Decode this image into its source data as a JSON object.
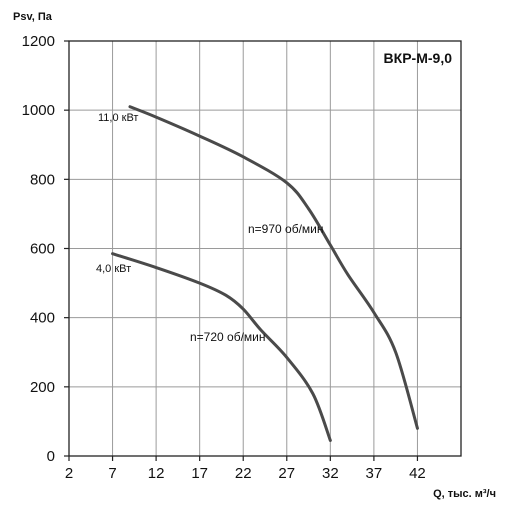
{
  "chart_data": {
    "type": "line",
    "title": "ВКР-М-9,0",
    "xlabel": "Q, тыс. м³/ч",
    "ylabel": "Psv, Па",
    "xlim": [
      2,
      47
    ],
    "ylim": [
      0,
      1200
    ],
    "x_ticks": [
      2,
      7,
      12,
      17,
      22,
      27,
      32,
      37,
      42
    ],
    "y_ticks": [
      0,
      200,
      400,
      600,
      800,
      1000,
      1200
    ],
    "grid": true,
    "colors": {
      "curve": "#4a4a4a",
      "grid": "#9a9a9a",
      "axis": "#222222",
      "text": "#111111"
    },
    "series": [
      {
        "name": "11,0 кВт",
        "speed_label": "n=970 об/мин",
        "x": [
          9.0,
          12.0,
          17.0,
          22.0,
          27.0,
          29.5,
          32.0,
          34.0,
          37.0,
          39.5,
          42.0
        ],
        "y": [
          1010,
          980,
          925,
          865,
          790,
          715,
          610,
          525,
          415,
          300,
          80
        ]
      },
      {
        "name": "4,0 кВт",
        "speed_label": "n=720 об/мин",
        "x": [
          7.0,
          12.0,
          17.0,
          20.0,
          22.0,
          24.0,
          27.0,
          30.0,
          32.0
        ],
        "y": [
          585,
          545,
          500,
          465,
          425,
          365,
          285,
          180,
          45
        ]
      }
    ]
  }
}
